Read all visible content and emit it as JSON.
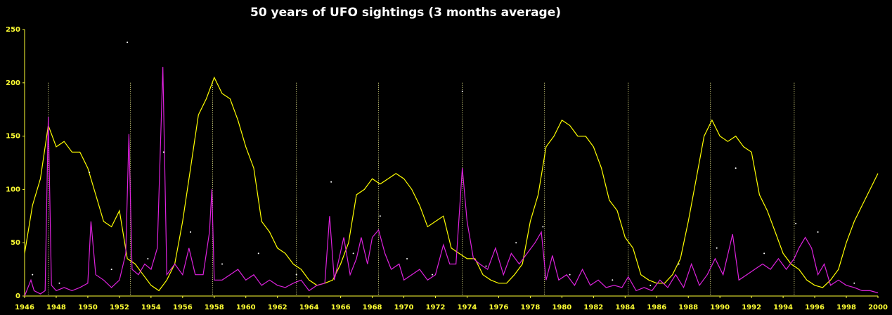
{
  "chart_data": {
    "type": "line",
    "title": "50 years of UFO sightings (3 months average)",
    "xlim": [
      1946,
      2000
    ],
    "xticks": [
      1946,
      1948,
      1950,
      1952,
      1954,
      1956,
      1958,
      1960,
      1962,
      1964,
      1966,
      1968,
      1970,
      1972,
      1974,
      1976,
      1978,
      1980,
      1982,
      1984,
      1986,
      1988,
      1990,
      1992,
      1994,
      1996,
      1998,
      2000
    ],
    "ylim": [
      0,
      250
    ],
    "yticks": [
      0,
      50,
      100,
      150,
      200,
      250
    ],
    "axis_color": "#ffff33",
    "vlines": [
      1947.5,
      1952.7,
      1957.9,
      1963.2,
      1968.4,
      1973.7,
      1978.9,
      1984.2,
      1989.4,
      1994.7
    ],
    "vline_color": "#ffff99",
    "series": [
      {
        "style": "line",
        "color": "#ffff00",
        "x": [
          1946,
          1946.5,
          1947,
          1947.5,
          1948,
          1948.5,
          1949,
          1949.5,
          1950,
          1950.5,
          1951,
          1951.5,
          1952,
          1952.5,
          1953,
          1953.5,
          1954,
          1954.5,
          1955,
          1955.5,
          1956,
          1956.5,
          1957,
          1957.5,
          1958,
          1958.5,
          1959,
          1959.5,
          1960,
          1960.5,
          1961,
          1961.5,
          1962,
          1962.5,
          1963,
          1963.5,
          1964,
          1964.5,
          1965,
          1965.5,
          1966,
          1966.5,
          1967,
          1967.5,
          1968,
          1968.5,
          1969,
          1969.5,
          1970,
          1970.5,
          1971,
          1971.5,
          1972,
          1972.5,
          1973,
          1973.5,
          1974,
          1974.5,
          1975,
          1975.5,
          1976,
          1976.5,
          1977,
          1977.5,
          1978,
          1978.5,
          1979,
          1979.5,
          1980,
          1980.5,
          1981,
          1981.5,
          1982,
          1982.5,
          1983,
          1983.5,
          1984,
          1984.5,
          1985,
          1985.5,
          1986,
          1986.5,
          1987,
          1987.5,
          1988,
          1988.5,
          1989,
          1989.5,
          1990,
          1990.5,
          1991,
          1991.5,
          1992,
          1992.5,
          1993,
          1993.5,
          1994,
          1994.5,
          1995,
          1995.5,
          1996,
          1996.5,
          1997,
          1997.5,
          1998,
          1998.5,
          1999,
          1999.5,
          2000
        ],
        "values": [
          40,
          85,
          110,
          160,
          140,
          145,
          135,
          135,
          120,
          95,
          70,
          65,
          80,
          35,
          30,
          20,
          10,
          5,
          15,
          30,
          70,
          120,
          170,
          185,
          205,
          190,
          185,
          165,
          140,
          120,
          70,
          60,
          45,
          40,
          30,
          25,
          15,
          10,
          12,
          15,
          30,
          50,
          95,
          100,
          110,
          105,
          110,
          115,
          110,
          100,
          85,
          65,
          70,
          75,
          45,
          40,
          35,
          35,
          20,
          15,
          12,
          12,
          20,
          30,
          70,
          95,
          140,
          150,
          165,
          160,
          150,
          150,
          140,
          120,
          90,
          80,
          55,
          45,
          20,
          15,
          12,
          12,
          20,
          35,
          70,
          110,
          150,
          165,
          150,
          145,
          150,
          140,
          135,
          95,
          80,
          60,
          40,
          30,
          25,
          15,
          10,
          8,
          15,
          25,
          50,
          70,
          85,
          100,
          115
        ]
      },
      {
        "style": "line",
        "color": "#dd22dd",
        "x": [
          1946,
          1946.4,
          1946.6,
          1947,
          1947.3,
          1947.5,
          1947.7,
          1948,
          1948.5,
          1949,
          1949.5,
          1950,
          1950.2,
          1950.5,
          1951,
          1951.5,
          1952,
          1952.4,
          1952.6,
          1952.8,
          1953.2,
          1953.6,
          1954,
          1954.4,
          1954.75,
          1955,
          1955.5,
          1956,
          1956.4,
          1956.8,
          1957.3,
          1957.7,
          1957.85,
          1958,
          1958.5,
          1959,
          1959.5,
          1960,
          1960.5,
          1961,
          1961.5,
          1962,
          1962.5,
          1963,
          1963.5,
          1964,
          1964.5,
          1965,
          1965.3,
          1965.6,
          1966.2,
          1966.6,
          1967,
          1967.3,
          1967.7,
          1968,
          1968.4,
          1968.8,
          1969.2,
          1969.7,
          1970,
          1970.5,
          1971,
          1971.5,
          1972,
          1972.5,
          1972.9,
          1973.3,
          1973.7,
          1974,
          1974.4,
          1974.8,
          1975.3,
          1975.8,
          1976.3,
          1976.8,
          1977.3,
          1977.8,
          1978.3,
          1978.7,
          1979,
          1979.4,
          1979.8,
          1980.3,
          1980.8,
          1981.3,
          1981.8,
          1982.3,
          1982.8,
          1983.3,
          1983.8,
          1984.2,
          1984.7,
          1985.2,
          1985.7,
          1986.2,
          1986.7,
          1987.2,
          1987.7,
          1988.2,
          1988.7,
          1989.2,
          1989.7,
          1990.2,
          1990.8,
          1991.2,
          1991.7,
          1992.2,
          1992.7,
          1993.2,
          1993.7,
          1994.2,
          1994.7,
          1995,
          1995.4,
          1995.8,
          1996.2,
          1996.6,
          1997,
          1997.5,
          1998,
          1998.5,
          1999,
          1999.5,
          2000
        ],
        "values": [
          0,
          15,
          5,
          2,
          5,
          168,
          10,
          5,
          8,
          5,
          8,
          12,
          70,
          20,
          15,
          8,
          15,
          40,
          152,
          25,
          20,
          30,
          25,
          45,
          215,
          20,
          30,
          20,
          45,
          20,
          20,
          60,
          100,
          15,
          15,
          20,
          25,
          15,
          20,
          10,
          15,
          10,
          8,
          12,
          15,
          5,
          10,
          12,
          75,
          15,
          55,
          20,
          35,
          55,
          30,
          55,
          62,
          40,
          25,
          30,
          15,
          20,
          25,
          15,
          20,
          48,
          30,
          30,
          120,
          70,
          35,
          30,
          25,
          45,
          20,
          40,
          30,
          40,
          50,
          60,
          15,
          38,
          15,
          20,
          10,
          25,
          10,
          15,
          8,
          10,
          8,
          18,
          5,
          8,
          5,
          15,
          8,
          20,
          8,
          30,
          10,
          20,
          35,
          20,
          58,
          15,
          20,
          25,
          30,
          25,
          35,
          25,
          35,
          45,
          55,
          45,
          20,
          30,
          10,
          15,
          10,
          8,
          5,
          5,
          3
        ]
      },
      {
        "style": "dots",
        "color": "#ffffff",
        "x": [
          1946.5,
          1948.2,
          1950.1,
          1951.5,
          1952.5,
          1953.8,
          1954.8,
          1956.5,
          1958.5,
          1960.8,
          1963.2,
          1965.4,
          1966.8,
          1968.5,
          1970.2,
          1971.8,
          1973.7,
          1975.2,
          1977.1,
          1978.8,
          1980.5,
          1983.2,
          1985.6,
          1987.4,
          1989.8,
          1991.0,
          1992.8,
          1994.8,
          1996.2,
          1998.5
        ],
        "values": [
          20,
          12,
          116,
          25,
          238,
          35,
          135,
          60,
          30,
          40,
          20,
          107,
          40,
          75,
          35,
          20,
          192,
          28,
          50,
          65,
          20,
          15,
          10,
          30,
          45,
          120,
          40,
          68,
          60,
          12
        ]
      }
    ]
  }
}
